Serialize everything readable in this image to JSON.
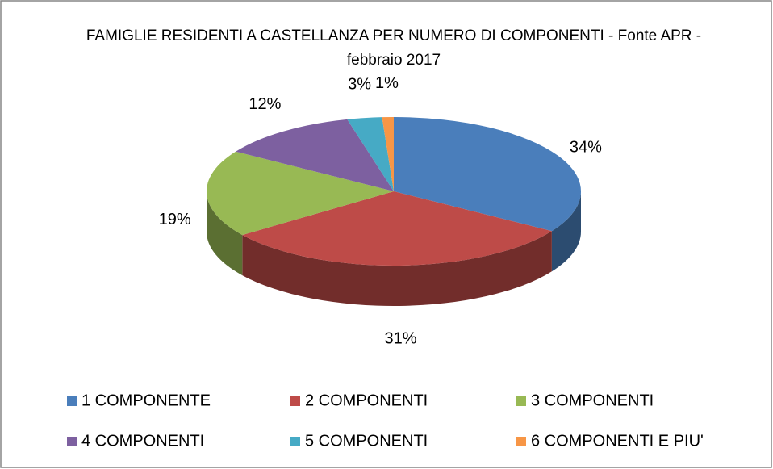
{
  "chart_data": {
    "type": "pie",
    "title": "FAMIGLIE RESIDENTI A CASTELLANZA PER NUMERO DI COMPONENTI - Fonte APR - febbraio 2017",
    "categories": [
      "1 COMPONENTE",
      "2 COMPONENTI",
      "3 COMPONENTI",
      "4 COMPONENTI",
      "5 COMPONENTI",
      "6 COMPONENTI E PIU'"
    ],
    "values": [
      34,
      31,
      19,
      12,
      3,
      1
    ],
    "value_labels": [
      "34%",
      "31%",
      "19%",
      "12%",
      "3%",
      "1%"
    ],
    "colors": [
      "#4a7ebb",
      "#be4b48",
      "#98b954",
      "#7d60a0",
      "#46aac5",
      "#f79646"
    ],
    "legend": "bottom"
  }
}
